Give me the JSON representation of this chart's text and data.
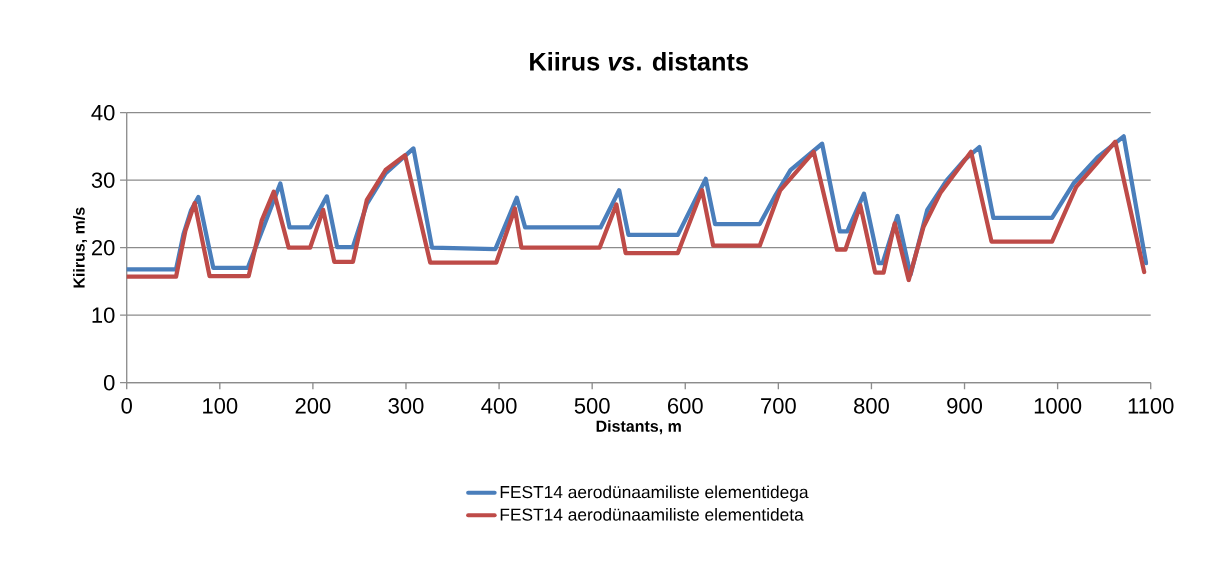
{
  "chart_data": {
    "type": "line",
    "title": "Kiirus *vs*. distants",
    "xlabel": "Distants, m",
    "ylabel": "Kiirus, m/s",
    "xlim": [
      0,
      1100
    ],
    "xticks": [
      0,
      100,
      200,
      300,
      400,
      500,
      600,
      700,
      800,
      900,
      1000,
      1100
    ],
    "ylim": [
      0,
      40
    ],
    "yticks": [
      0,
      10,
      20,
      30,
      40
    ],
    "grid": "y",
    "legend": "bottom",
    "marker": "none",
    "line_style": "solid",
    "series": [
      {
        "name": "FEST14 aerodünaamiliste elementidega",
        "color": "#4a7ebb",
        "x": [
          0,
          53,
          61,
          69,
          77,
          93,
          130,
          165,
          175,
          197,
          215,
          226,
          243,
          258,
          278,
          308,
          328,
          396,
          419,
          428,
          509,
          529,
          539,
          592,
          622,
          632,
          680,
          697,
          713,
          747,
          766,
          774,
          792,
          808,
          812,
          828,
          842,
          860,
          881,
          900,
          916,
          931,
          994,
          1017,
          1043,
          1071,
          1095
        ],
        "values": [
          16.8,
          16.8,
          22,
          25.5,
          27.5,
          17,
          17,
          29.5,
          23,
          23,
          27.6,
          20.1,
          20.1,
          26.5,
          31,
          34.7,
          20,
          19.8,
          27.4,
          23,
          23,
          28.5,
          21.9,
          21.9,
          30.2,
          23.5,
          23.5,
          27.8,
          31.5,
          35.4,
          22.4,
          22.4,
          28,
          17.7,
          17.7,
          24.7,
          16,
          25.6,
          30,
          33,
          34.9,
          24.4,
          24.4,
          29.5,
          33.4,
          36.5,
          17.7
        ]
      },
      {
        "name": "FEST14 aerodünaamiliste elementideta",
        "color": "#be4b48",
        "x": [
          0,
          53,
          63,
          73,
          89,
          131,
          145,
          158,
          174,
          197,
          211,
          223,
          243,
          258,
          278,
          299,
          326,
          397,
          417,
          424,
          508,
          526,
          536,
          592,
          618,
          630,
          680,
          702,
          738,
          763,
          772,
          788,
          804,
          813,
          825,
          840,
          856,
          874,
          907,
          929,
          994,
          1020,
          1042,
          1062,
          1093
        ],
        "values": [
          15.7,
          15.7,
          22.5,
          26.6,
          15.8,
          15.8,
          24,
          28.3,
          20,
          20,
          25.6,
          17.9,
          17.9,
          27.1,
          31.5,
          33.7,
          17.8,
          17.8,
          25.8,
          20,
          20,
          26.4,
          19.2,
          19.2,
          28.5,
          20.3,
          20.3,
          28.5,
          34.2,
          19.7,
          19.7,
          26.3,
          16.3,
          16.3,
          23.6,
          15.2,
          23.1,
          28.1,
          34.2,
          20.9,
          20.9,
          29,
          32.5,
          35.7,
          16.4
        ]
      }
    ]
  }
}
